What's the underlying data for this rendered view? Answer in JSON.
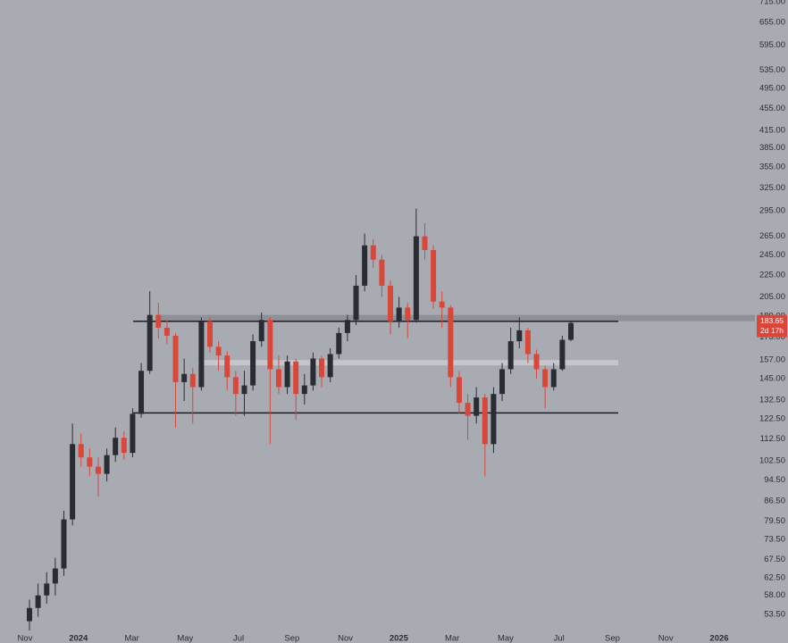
{
  "chart_data": {
    "type": "candlestick",
    "log": true,
    "ylim": [
      50,
      720
    ],
    "yticks": [
      {
        "value": 53.5,
        "label": "53.50"
      },
      {
        "value": 58,
        "label": "58.00"
      },
      {
        "value": 62.5,
        "label": "62.50"
      },
      {
        "value": 67.5,
        "label": "67.50"
      },
      {
        "value": 73.5,
        "label": "73.50"
      },
      {
        "value": 79.5,
        "label": "79.50"
      },
      {
        "value": 86.5,
        "label": "86.50"
      },
      {
        "value": 94.5,
        "label": "94.50"
      },
      {
        "value": 102.5,
        "label": "102.50"
      },
      {
        "value": 112.5,
        "label": "112.50"
      },
      {
        "value": 122.5,
        "label": "122.50"
      },
      {
        "value": 132.5,
        "label": "132.50"
      },
      {
        "value": 145,
        "label": "145.00"
      },
      {
        "value": 157,
        "label": "157.00"
      },
      {
        "value": 173,
        "label": "173.00"
      },
      {
        "value": 189,
        "label": "189.00"
      },
      {
        "value": 205,
        "label": "205.00"
      },
      {
        "value": 225,
        "label": "225.00"
      },
      {
        "value": 245,
        "label": "245.00"
      },
      {
        "value": 265,
        "label": "265.00"
      },
      {
        "value": 295,
        "label": "295.00"
      },
      {
        "value": 325,
        "label": "325.00"
      },
      {
        "value": 355,
        "label": "355.00"
      },
      {
        "value": 385,
        "label": "385.00"
      },
      {
        "value": 415,
        "label": "415.00"
      },
      {
        "value": 455,
        "label": "455.00"
      },
      {
        "value": 495,
        "label": "495.00"
      },
      {
        "value": 535,
        "label": "535.00"
      },
      {
        "value": 595,
        "label": "595.00"
      },
      {
        "value": 655,
        "label": "655.00"
      },
      {
        "value": 715,
        "label": "715.00"
      }
    ],
    "x_tick_labels": [
      "Nov",
      "2024",
      "Mar",
      "May",
      "Jul",
      "Sep",
      "Nov",
      "2025",
      "Mar",
      "May",
      "Jul",
      "Sep",
      "Nov",
      "2026"
    ],
    "up_color": "#2a2c33",
    "down_color": "#d9473b",
    "open": [
      52,
      55,
      58,
      61,
      65,
      80,
      110,
      104,
      100,
      97,
      105,
      113,
      106,
      125,
      150,
      190,
      180,
      174,
      143,
      148,
      140,
      185,
      166,
      160,
      146,
      136,
      141,
      170,
      186,
      151,
      140,
      156,
      136,
      141,
      158,
      146,
      161,
      176,
      186,
      215,
      255,
      240,
      215,
      185,
      196,
      186,
      265,
      250,
      201,
      196,
      146,
      131,
      124,
      134,
      110,
      136,
      151,
      170,
      178,
      161,
      151,
      140,
      151,
      171
    ],
    "high": [
      57,
      61,
      64,
      68,
      83,
      120,
      115,
      108,
      104,
      108,
      118,
      116,
      128,
      155,
      210,
      200,
      186,
      176,
      158,
      152,
      188,
      188,
      170,
      163,
      150,
      150,
      175,
      192,
      188,
      160,
      160,
      158,
      148,
      162,
      160,
      165,
      180,
      190,
      225,
      268,
      262,
      245,
      220,
      205,
      200,
      298,
      280,
      255,
      210,
      198,
      150,
      136,
      140,
      136,
      140,
      155,
      180,
      188,
      180,
      164,
      153,
      155,
      174,
      185
    ],
    "low": [
      50,
      53,
      56,
      58,
      63,
      78,
      100,
      96,
      88,
      94,
      102,
      103,
      104,
      123,
      148,
      172,
      168,
      118,
      132,
      120,
      138,
      162,
      150,
      138,
      124,
      124,
      138,
      166,
      110,
      136,
      136,
      122,
      130,
      138,
      140,
      143,
      158,
      170,
      182,
      210,
      232,
      205,
      175,
      180,
      172,
      184,
      240,
      195,
      180,
      140,
      125,
      112,
      120,
      96,
      106,
      132,
      148,
      165,
      155,
      145,
      128,
      138,
      150,
      170
    ],
    "close": [
      55,
      58,
      61,
      65,
      80,
      110,
      104,
      100,
      97,
      105,
      113,
      106,
      125,
      150,
      190,
      180,
      174,
      143,
      148,
      140,
      185,
      166,
      160,
      146,
      136,
      141,
      170,
      186,
      151,
      140,
      156,
      136,
      141,
      158,
      146,
      161,
      176,
      186,
      215,
      255,
      240,
      215,
      185,
      196,
      186,
      265,
      250,
      201,
      196,
      146,
      131,
      124,
      134,
      110,
      136,
      151,
      170,
      178,
      161,
      151,
      140,
      151,
      171,
      183.65
    ],
    "levels": [
      185,
      125.5
    ],
    "band": [
      153.5,
      157
    ],
    "zone": [
      185,
      190
    ],
    "countdown": "2d 17h"
  }
}
